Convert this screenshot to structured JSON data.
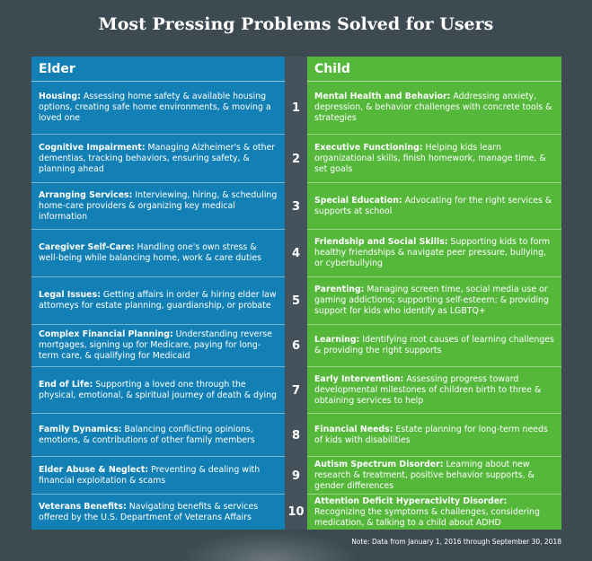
{
  "title": "Most Pressing Problems Solved for Users",
  "elder": {
    "header": "Elder",
    "items": [
      {
        "heading": "Housing:",
        "text": "Assessing home safety & available housing options, creating safe home environments, & moving a loved one"
      },
      {
        "heading": "Cognitive Impairment:",
        "text": "Managing Alzheimer's & other dementias, tracking behaviors, ensuring safety, & planning ahead"
      },
      {
        "heading": "Arranging Services:",
        "text": "Interviewing, hiring, & scheduling home-care providers & organizing key medical information"
      },
      {
        "heading": "Caregiver Self-Care:",
        "text": "Handling one's own stress & well-being while balancing home, work & care duties"
      },
      {
        "heading": "Legal Issues:",
        "text": "Getting affairs in order & hiring elder law attorneys for estate planning, guardianship, or probate"
      },
      {
        "heading": "Complex Financial Planning:",
        "text": "Understanding reverse mortgages, signing up for Medicare, paying for long-term care, & qualifying for Medicaid"
      },
      {
        "heading": "End of Life:",
        "text": "Supporting a loved one through the physical, emotional, & spiritual journey of death & dying"
      },
      {
        "heading": "Family Dynamics:",
        "text": "Balancing conflicting opinions, emotions, & contributions of other family members"
      },
      {
        "heading": "Elder Abuse & Neglect:",
        "text": "Preventing & dealing with financial exploitation & scams"
      },
      {
        "heading": "Veterans Benefits:",
        "text": "Navigating benefits & services offered by the U.S. Department of Veterans Affairs"
      }
    ]
  },
  "numbers": [
    "1",
    "2",
    "3",
    "4",
    "5",
    "6",
    "7",
    "8",
    "9",
    "10"
  ],
  "child": {
    "header": "Child",
    "items": [
      {
        "heading": "Mental Health and Behavior:",
        "text": "Addressing anxiety, depression, & behavior challenges with concrete tools & strategies"
      },
      {
        "heading": "Executive Functioning:",
        "text": "Helping kids learn organizational skills, finish homework, manage time, & set goals"
      },
      {
        "heading": "Special Education:",
        "text": "Advocating for the right services & supports at school"
      },
      {
        "heading": "Friendship and Social Skills:",
        "text": "Supporting kids to form healthy friendships & navigate peer pressure, bullying, or cyberbullying"
      },
      {
        "heading": "Parenting:",
        "text": "Managing screen time, social media use or gaming addictions; supporting self-esteem; & providing support for kids who identify as LGBTQ+"
      },
      {
        "heading": "Learning:",
        "text": "Identifying root causes of learning challenges & providing the right supports"
      },
      {
        "heading": "Early Intervention:",
        "text": "Assessing progress toward developmental milestones of children birth to three & obtaining services to help"
      },
      {
        "heading": "Financial Needs:",
        "text": "Estate planning for long-term needs of kids with disabilities"
      },
      {
        "heading": "Autism Spectrum Disorder:",
        "text": "Learning about new research & treatment, positive behavior supports, & gender differences"
      },
      {
        "heading": "Attention Deficit Hyperactivity Disorder:",
        "text": "Recognizing the symptoms & challenges, considering medication, & talking to a child about ADHD"
      }
    ]
  },
  "note": "Note: Data from January 1, 2016 through September 30, 2018"
}
